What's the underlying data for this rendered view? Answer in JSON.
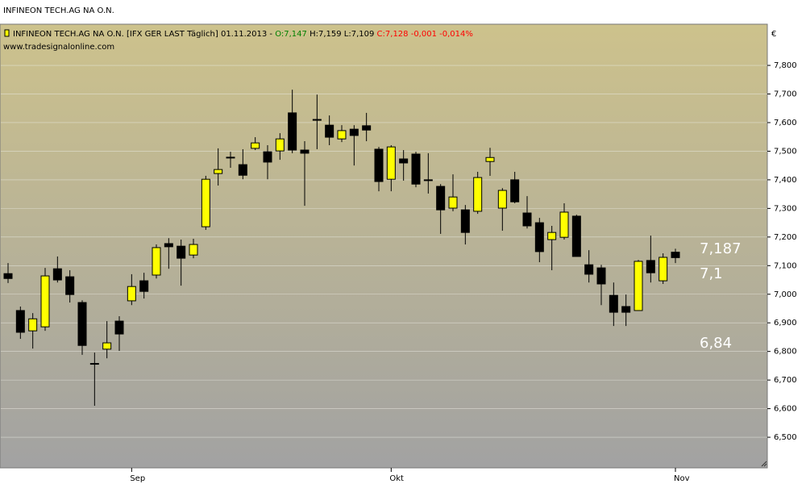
{
  "chart_data": {
    "type": "candlestick",
    "title": "INFINEON TECH.AG NA O.N.",
    "source": "www.tradesignalonline.com",
    "header": [
      {
        "text": "INFINEON TECH.AG NA O.N. [IFX GER LAST Täglich] 01.11.2013 -",
        "color": "#000000"
      },
      {
        "text": "O:7,147",
        "color": "#008000"
      },
      {
        "text": "H:7,159 L:7,109",
        "color": "#000000"
      },
      {
        "text": "C:7,128 -0,001 -0,014%",
        "color": "#ff0000"
      }
    ],
    "y_unit": "€",
    "annotations": [
      "7,187",
      "7,1",
      "6,84"
    ],
    "categories": [
      null,
      null,
      null,
      null,
      null,
      null,
      null,
      null,
      null,
      null,
      "Sep",
      null,
      null,
      null,
      null,
      null,
      null,
      null,
      null,
      null,
      null,
      null,
      null,
      null,
      null,
      null,
      null,
      null,
      null,
      null,
      null,
      "Okt",
      null,
      null,
      null,
      null,
      null,
      null,
      null,
      null,
      null,
      null,
      null,
      null,
      null,
      null,
      null,
      null,
      null,
      null,
      null,
      null,
      null,
      null,
      "Nov"
    ],
    "open": [
      7.072,
      6.943,
      6.872,
      6.886,
      7.089,
      7.061,
      6.971,
      6.758,
      6.808,
      6.906,
      6.977,
      7.047,
      7.067,
      7.177,
      7.168,
      7.137,
      7.236,
      7.422,
      7.479,
      7.453,
      7.51,
      7.498,
      7.501,
      7.634,
      7.504,
      7.611,
      7.591,
      7.543,
      7.577,
      7.589,
      7.507,
      7.402,
      7.473,
      7.49,
      7.4,
      7.377,
      7.301,
      7.295,
      7.29,
      7.464,
      7.301,
      7.4,
      7.284,
      7.25,
      7.191,
      7.199,
      7.273,
      7.103,
      7.092,
      6.996,
      6.957,
      6.943,
      7.118,
      7.047,
      7.147
    ],
    "high": [
      7.109,
      6.957,
      6.934,
      7.092,
      7.132,
      7.084,
      6.979,
      6.796,
      6.906,
      6.923,
      7.07,
      7.075,
      7.174,
      7.196,
      7.191,
      7.194,
      7.414,
      7.51,
      7.498,
      7.507,
      7.549,
      7.521,
      7.563,
      7.715,
      7.535,
      7.698,
      7.625,
      7.591,
      7.591,
      7.634,
      7.515,
      7.521,
      7.504,
      7.498,
      7.493,
      7.385,
      7.419,
      7.312,
      7.428,
      7.512,
      7.371,
      7.428,
      7.343,
      7.267,
      7.239,
      7.318,
      7.278,
      7.154,
      7.103,
      7.041,
      6.999,
      7.12,
      7.205,
      7.143,
      7.159
    ],
    "low": [
      7.039,
      6.844,
      6.81,
      6.872,
      7.041,
      6.971,
      6.788,
      6.61,
      6.776,
      6.802,
      6.962,
      6.985,
      7.055,
      7.089,
      7.03,
      7.126,
      7.225,
      7.38,
      7.442,
      7.402,
      7.504,
      7.402,
      7.47,
      7.493,
      7.309,
      7.507,
      7.521,
      7.532,
      7.45,
      7.535,
      7.36,
      7.36,
      7.397,
      7.374,
      7.352,
      7.211,
      7.29,
      7.174,
      7.281,
      7.414,
      7.222,
      7.318,
      7.23,
      7.112,
      7.084,
      7.191,
      7.132,
      7.041,
      6.962,
      6.889,
      6.889,
      6.943,
      7.041,
      7.036,
      7.109
    ],
    "close": [
      7.055,
      6.867,
      6.914,
      7.064,
      7.05,
      6.999,
      6.821,
      6.756,
      6.83,
      6.861,
      7.027,
      7.01,
      7.163,
      7.166,
      7.126,
      7.174,
      7.402,
      7.436,
      7.478,
      7.416,
      7.529,
      7.462,
      7.543,
      7.504,
      7.493,
      7.61,
      7.549,
      7.572,
      7.555,
      7.574,
      7.394,
      7.515,
      7.459,
      7.385,
      7.399,
      7.295,
      7.34,
      7.216,
      7.408,
      7.478,
      7.363,
      7.323,
      7.239,
      7.149,
      7.216,
      7.287,
      7.132,
      7.07,
      7.036,
      6.937,
      6.937,
      7.115,
      7.075,
      7.129,
      7.128
    ],
    "up_color": "#ffff00",
    "down_color": "#000000",
    "ylim": [
      6.393,
      7.944
    ],
    "yticks": [
      {
        "value": 6.5,
        "label": "6,500"
      },
      {
        "value": 6.6,
        "label": "6,600"
      },
      {
        "value": 6.7,
        "label": "6,700"
      },
      {
        "value": 6.8,
        "label": "6,800"
      },
      {
        "value": 6.9,
        "label": "6,900"
      },
      {
        "value": 7.0,
        "label": "7,000"
      },
      {
        "value": 7.1,
        "label": "7,100"
      },
      {
        "value": 7.2,
        "label": "7,200"
      },
      {
        "value": 7.3,
        "label": "7,300"
      },
      {
        "value": 7.4,
        "label": "7,400"
      },
      {
        "value": 7.5,
        "label": "7,500"
      },
      {
        "value": 7.6,
        "label": "7,600"
      },
      {
        "value": 7.7,
        "label": "7,700"
      },
      {
        "value": 7.8,
        "label": "7,800"
      }
    ],
    "grid": true
  }
}
